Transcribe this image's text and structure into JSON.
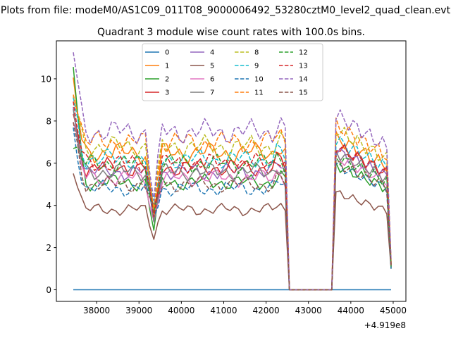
{
  "figure": {
    "suptitle": "Plots from file: modeM0/AS1C09_011T08_9000006492_53280cztM0_level2_quad_clean.evt",
    "axes_title": "Quadrant 3 module wise count rates with 100.0s bins.",
    "offset_text": "+4.919e8"
  },
  "chart_data": {
    "type": "line",
    "title": "Quadrant 3 module wise count rates with 100.0s bins.",
    "xlabel": "",
    "ylabel": "",
    "x_offset": 491900000,
    "xlim": [
      37050,
      45300
    ],
    "ylim": [
      -0.55,
      11.8
    ],
    "xticks": [
      38000,
      39000,
      40000,
      41000,
      42000,
      43000,
      44000,
      45000
    ],
    "xtick_labels": [
      "38000",
      "39000",
      "40000",
      "41000",
      "42000",
      "43000",
      "44000",
      "45000"
    ],
    "yticks": [
      0,
      2,
      4,
      6,
      8,
      10
    ],
    "ytick_labels": [
      "0",
      "2",
      "4",
      "6",
      "8",
      "10"
    ],
    "grid": false,
    "legend": {
      "placement": "upper center",
      "columns": 4
    },
    "segments": [
      {
        "x_start": 37450,
        "x_end": 42450,
        "step": 100
      },
      {
        "x_start": 42550,
        "x_end": 43550,
        "step": 100
      },
      {
        "x_start": 43650,
        "x_end": 44950,
        "step": 100
      }
    ],
    "dip_x": [
      39350
    ],
    "series": [
      {
        "name": "0",
        "color": "#1f77b4",
        "dashed": false,
        "start": 0,
        "base": 0,
        "dip": 0,
        "level2": 0,
        "end": 0
      },
      {
        "name": "1",
        "color": "#ff7f0e",
        "dashed": false,
        "start": 9.6,
        "base": 6.5,
        "dip": 3.6,
        "level2": 7.2,
        "end": 1.2
      },
      {
        "name": "2",
        "color": "#2ca02c",
        "dashed": false,
        "start": 10.6,
        "base": 5.1,
        "dip": 2.8,
        "level2": 5.9,
        "end": 1.0
      },
      {
        "name": "3",
        "color": "#d62728",
        "dashed": false,
        "start": 8.3,
        "base": 5.8,
        "dip": 3.4,
        "level2": 6.8,
        "end": 1.2
      },
      {
        "name": "4",
        "color": "#9467bd",
        "dashed": false,
        "start": 8.6,
        "base": 5.6,
        "dip": 3.3,
        "level2": 6.6,
        "end": 1.1
      },
      {
        "name": "5",
        "color": "#8c564b",
        "dashed": false,
        "start": 5.8,
        "base": 3.8,
        "dip": 2.6,
        "level2": 4.6,
        "end": 1.0
      },
      {
        "name": "6",
        "color": "#e377c2",
        "dashed": false,
        "start": 8.0,
        "base": 5.3,
        "dip": 3.2,
        "level2": 6.3,
        "end": 1.1
      },
      {
        "name": "7",
        "color": "#7f7f7f",
        "dashed": false,
        "start": 8.2,
        "base": 5.6,
        "dip": 3.4,
        "level2": 6.5,
        "end": 1.1
      },
      {
        "name": "8",
        "color": "#bcbd22",
        "dashed": true,
        "start": 9.2,
        "base": 6.8,
        "dip": 3.9,
        "level2": 7.6,
        "end": 1.3
      },
      {
        "name": "9",
        "color": "#17becf",
        "dashed": true,
        "start": 9.0,
        "base": 6.2,
        "dip": 3.7,
        "level2": 7.1,
        "end": 1.2
      },
      {
        "name": "10",
        "color": "#1f77b4",
        "dashed": true,
        "start": 7.6,
        "base": 4.8,
        "dip": 3.5,
        "level2": 5.9,
        "end": 1.0
      },
      {
        "name": "11",
        "color": "#ff7f0e",
        "dashed": true,
        "start": 9.8,
        "base": 7.0,
        "dip": 4.0,
        "level2": 7.8,
        "end": 1.3
      },
      {
        "name": "12",
        "color": "#2ca02c",
        "dashed": true,
        "start": 6.8,
        "base": 6.0,
        "dip": 3.6,
        "level2": 6.3,
        "end": 1.1
      },
      {
        "name": "13",
        "color": "#d62728",
        "dashed": true,
        "start": 8.6,
        "base": 6.0,
        "dip": 3.7,
        "level2": 6.8,
        "end": 1.2
      },
      {
        "name": "14",
        "color": "#9467bd",
        "dashed": true,
        "start": 11.3,
        "base": 7.5,
        "dip": 4.3,
        "level2": 8.3,
        "end": 1.4
      },
      {
        "name": "15",
        "color": "#8c564b",
        "dashed": true,
        "start": 7.8,
        "base": 5.0,
        "dip": 3.6,
        "level2": 6.0,
        "end": 1.1
      }
    ]
  }
}
